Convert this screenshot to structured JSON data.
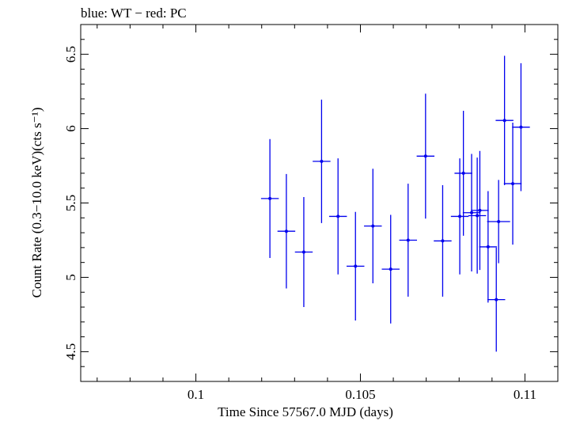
{
  "chart_data": {
    "type": "scatter",
    "title": "blue: WT − red: PC",
    "xlabel": "Time Since 57567.0 MJD (days)",
    "ylabel": "Count Rate (0.3−10.0 keV)(cts s⁻¹)",
    "xlim": [
      0.0965,
      0.111
    ],
    "ylim": [
      4.3,
      6.7
    ],
    "xticks": [
      0.1,
      0.105,
      0.11
    ],
    "xtick_labels": [
      "0.1",
      "0.105",
      "0.11"
    ],
    "yticks": [
      4.5,
      5,
      5.5,
      6,
      6.5
    ],
    "ytick_labels": [
      "4.5",
      "5",
      "5.5",
      "6",
      "6.5"
    ],
    "grid": false,
    "series": [
      {
        "color": "#0000ee",
        "points": [
          {
            "x": 0.10813,
            "xerr": 0.00027,
            "y": 5.7,
            "yerr": 0.42
          },
          {
            "x": 0.10838,
            "xerr": 0.00027,
            "y": 5.435,
            "yerr": 0.395
          },
          {
            "x": 0.10863,
            "xerr": 0.00027,
            "y": 5.45,
            "yerr": 0.4
          },
          {
            "x": 0.10888,
            "xerr": 0.00027,
            "y": 5.205,
            "yerr": 0.375
          },
          {
            "x": 0.10913,
            "xerr": 0.00027,
            "y": 4.85,
            "yerr": 0.35
          },
          {
            "x": 0.10938,
            "xerr": 0.00027,
            "y": 6.055,
            "yerr": 0.435
          },
          {
            "x": 0.10963,
            "xerr": 0.00027,
            "y": 5.63,
            "yerr": 0.41
          },
          {
            "x": 0.10988,
            "xerr": 0.00027,
            "y": 6.01,
            "yerr": 0.43
          },
          {
            "x": 0.10225,
            "xerr": 0.00027,
            "y": 5.53,
            "yerr": 0.4
          },
          {
            "x": 0.10275,
            "xerr": 0.00027,
            "y": 5.31,
            "yerr": 0.385
          },
          {
            "x": 0.10328,
            "xerr": 0.00027,
            "y": 5.17,
            "yerr": 0.37
          },
          {
            "x": 0.10382,
            "xerr": 0.00027,
            "y": 5.78,
            "yerr": 0.415
          },
          {
            "x": 0.10432,
            "xerr": 0.00027,
            "y": 5.41,
            "yerr": 0.39
          },
          {
            "x": 0.10485,
            "xerr": 0.00027,
            "y": 5.075,
            "yerr": 0.365
          },
          {
            "x": 0.10538,
            "xerr": 0.00027,
            "y": 5.345,
            "yerr": 0.385
          },
          {
            "x": 0.10592,
            "xerr": 0.00027,
            "y": 5.055,
            "yerr": 0.365
          },
          {
            "x": 0.10645,
            "xerr": 0.00027,
            "y": 5.25,
            "yerr": 0.38
          },
          {
            "x": 0.10698,
            "xerr": 0.00027,
            "y": 5.815,
            "yerr": 0.42
          },
          {
            "x": 0.1075,
            "xerr": 0.00027,
            "y": 5.245,
            "yerr": 0.375
          },
          {
            "x": 0.10802,
            "xerr": 0.00027,
            "y": 5.41,
            "yerr": 0.39
          },
          {
            "x": 0.10855,
            "xerr": 0.00027,
            "y": 5.415,
            "yerr": 0.39
          },
          {
            "x": 0.1092,
            "xerr": 0.00035,
            "y": 5.375,
            "yerr": 0.28
          }
        ]
      }
    ]
  }
}
